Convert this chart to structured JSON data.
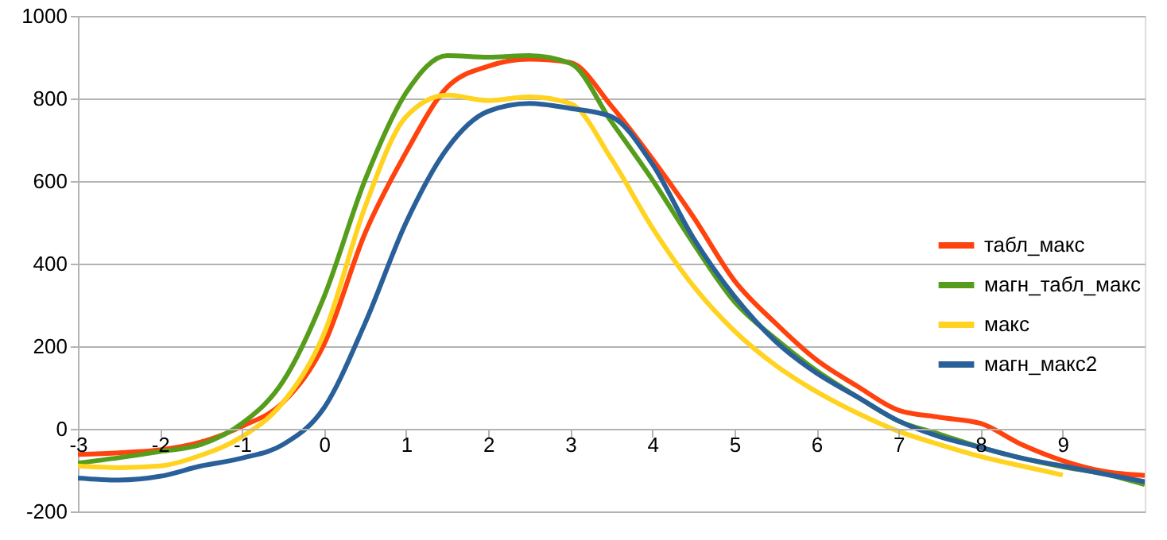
{
  "chart_data": {
    "type": "line",
    "x": [
      -3,
      -2.5,
      -2,
      -1.5,
      -1,
      -0.5,
      0,
      0.5,
      1,
      1.5,
      2,
      2.5,
      3,
      3.5,
      4,
      4.5,
      5,
      5.5,
      6,
      6.5,
      7,
      7.5,
      8,
      8.5,
      9,
      9.5,
      10
    ],
    "series": [
      {
        "name": "табл_макс",
        "color": "#ff420e",
        "values": [
          -62,
          -58,
          -51,
          -32,
          6,
          64,
          205,
          474,
          670,
          827,
          878,
          895,
          887,
          782,
          654,
          513,
          359,
          256,
          167,
          103,
          45,
          28,
          13,
          -38,
          -77,
          -103,
          -113
        ]
      },
      {
        "name": "магн_табл_макс",
        "color": "#579d1c",
        "values": [
          -83,
          -70,
          -55,
          -38,
          13,
          115,
          320,
          603,
          814,
          904,
          900,
          904,
          885,
          744,
          603,
          449,
          308,
          218,
          141,
          77,
          19,
          -13,
          -45,
          -71,
          -92,
          -109,
          -135
        ]
      },
      {
        "name": "макс",
        "color": "#ffd320",
        "values": [
          -90,
          -94,
          -90,
          -64,
          -19,
          64,
          231,
          538,
          756,
          808,
          795,
          804,
          788,
          654,
          487,
          346,
          237,
          154,
          90,
          38,
          -6,
          -38,
          -67,
          -90,
          -112,
          null,
          null
        ]
      },
      {
        "name": "магн_макс2",
        "color": "#2a6099",
        "values": [
          -119,
          -124,
          -115,
          -90,
          -71,
          -38,
          51,
          256,
          500,
          679,
          769,
          788,
          776,
          756,
          641,
          462,
          321,
          212,
          135,
          77,
          19,
          -19,
          -45,
          -71,
          -90,
          -109,
          -128
        ]
      }
    ],
    "xlim": [
      -3,
      10
    ],
    "xticks": [
      -3,
      -2,
      -1,
      0,
      1,
      2,
      3,
      4,
      5,
      6,
      7,
      8,
      9
    ],
    "ylim": [
      -200,
      1000
    ],
    "yticks": [
      -200,
      0,
      200,
      400,
      600,
      800,
      1000
    ],
    "grid": "y",
    "legend": "right",
    "marker": "none",
    "line_style": "solid"
  }
}
